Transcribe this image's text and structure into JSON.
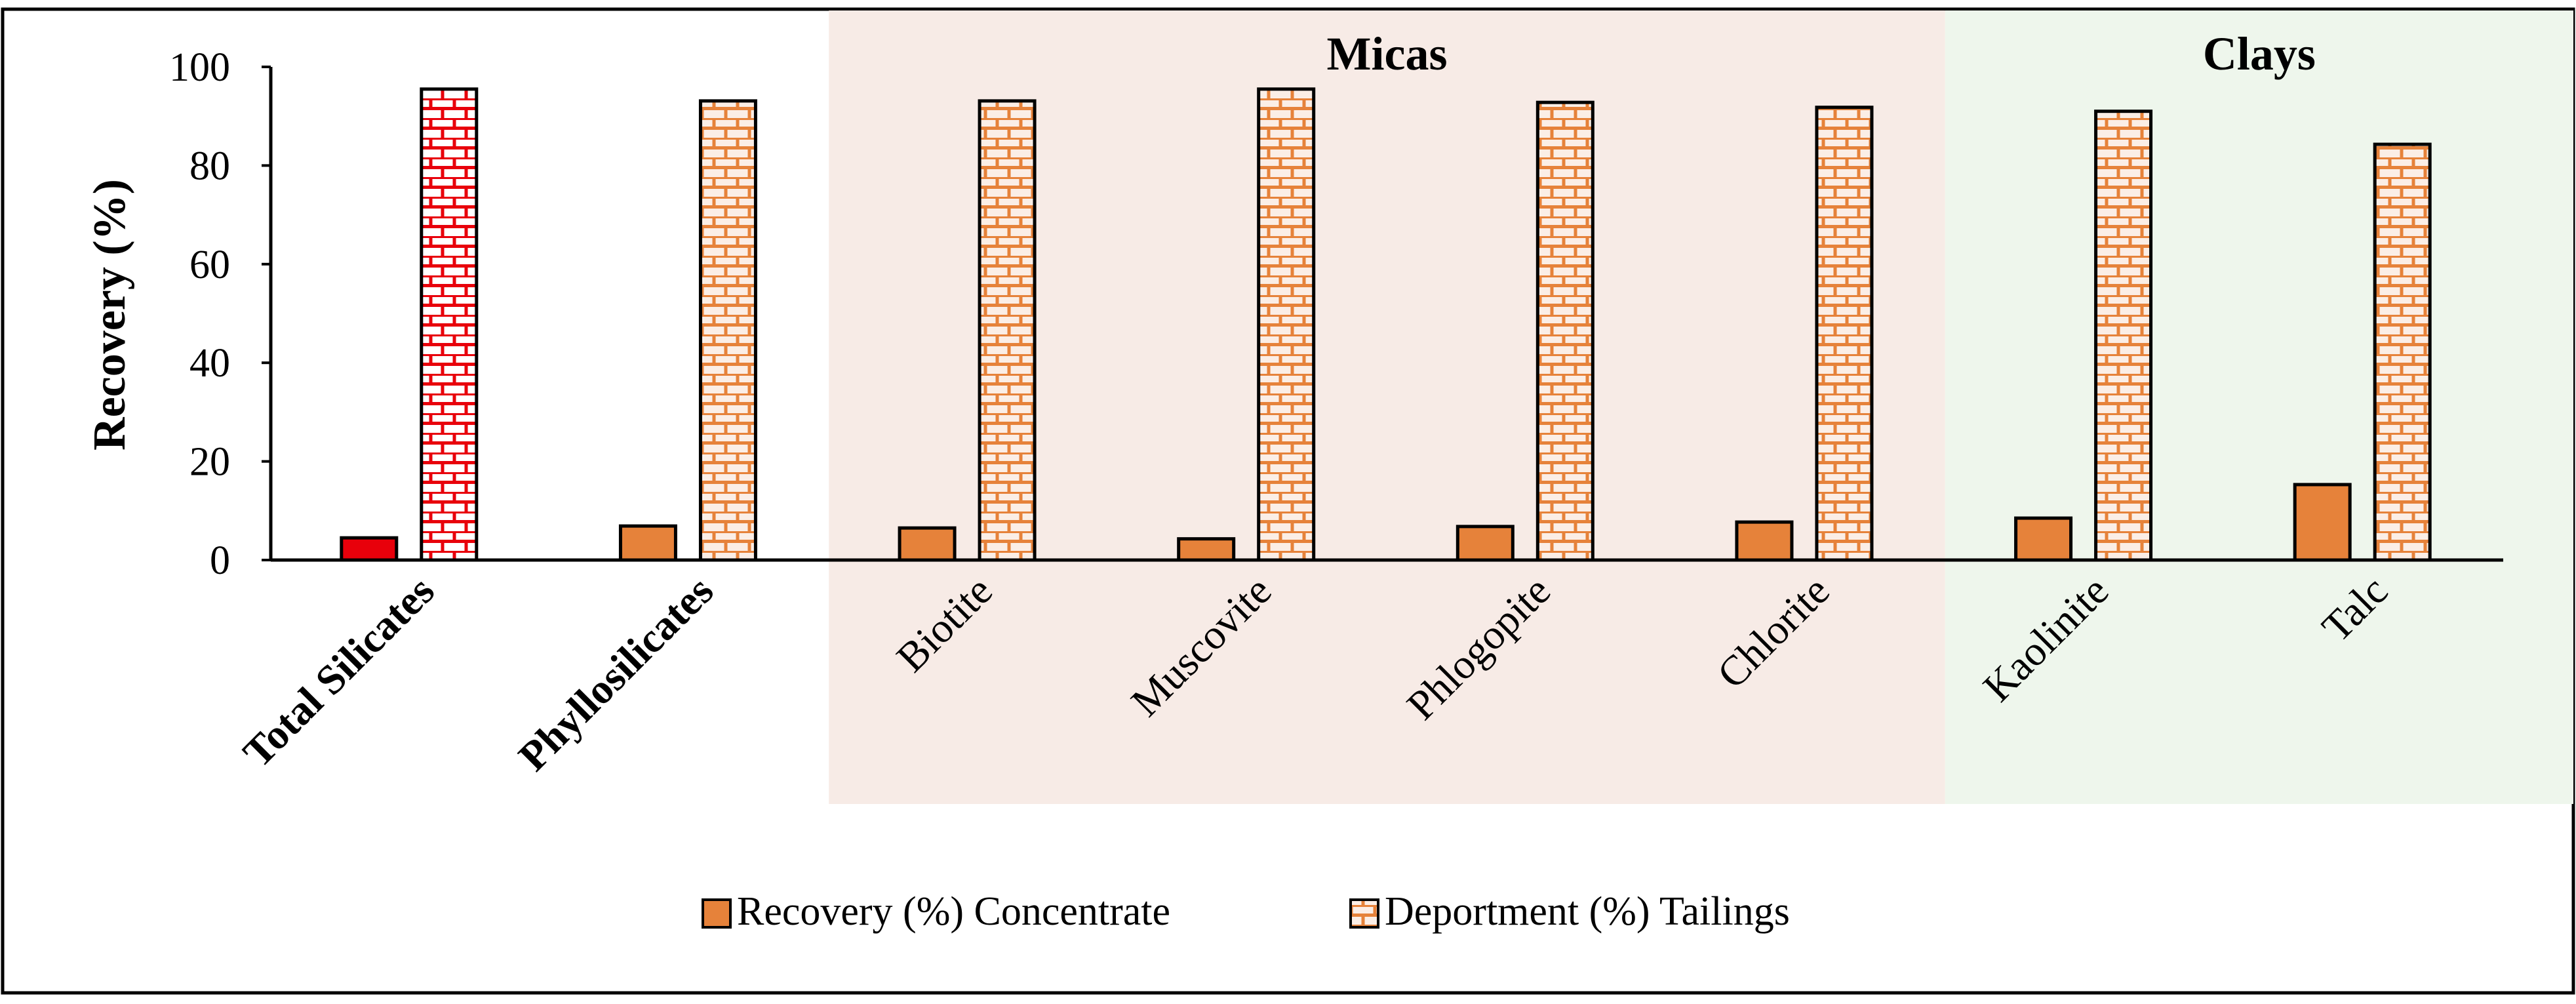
{
  "chart_data": {
    "type": "bar",
    "title": "",
    "xlabel": "",
    "ylabel": "Recovery (%)",
    "ylim": [
      0,
      100
    ],
    "yticks": [
      0,
      20,
      40,
      60,
      80,
      100
    ],
    "grid": false,
    "categories": [
      "Total Silicates",
      "Phyllosilicates",
      "Biotite",
      "Muscovite",
      "Phlogopite",
      "Chlorite",
      "Kaolinite",
      "Talc"
    ],
    "bold_categories": [
      "Total Silicates",
      "Phyllosilicates"
    ],
    "series": [
      {
        "name": "Recovery (%) Concentrate",
        "pattern": "solid",
        "values": [
          4.5,
          6.9,
          6.5,
          4.3,
          6.8,
          7.7,
          8.5,
          15.3
        ],
        "colors": [
          "#e8000b",
          "#e6823a",
          "#e6823a",
          "#e6823a",
          "#e6823a",
          "#e6823a",
          "#e6823a",
          "#e6823a"
        ]
      },
      {
        "name": "Deportment (%) Tailings",
        "pattern": "brick",
        "values": [
          95.5,
          93.1,
          93.1,
          95.5,
          92.8,
          91.8,
          91.0,
          84.3
        ],
        "colors": [
          "#e8000b",
          "#e6823a",
          "#e6823a",
          "#e6823a",
          "#e6823a",
          "#e6823a",
          "#e6823a",
          "#e6823a"
        ]
      }
    ],
    "regions": [
      {
        "label": "Micas",
        "from_category": "Biotite",
        "to_category": "Chlorite",
        "color": "#f7ebe6"
      },
      {
        "label": "Clays",
        "from_category": "Kaolinite",
        "to_category": "Talc",
        "color": "#eef6ec"
      }
    ],
    "legend": {
      "position": "bottom-center",
      "entries": [
        "Recovery (%) Concentrate",
        "Deportment (%) Tailings"
      ]
    }
  }
}
